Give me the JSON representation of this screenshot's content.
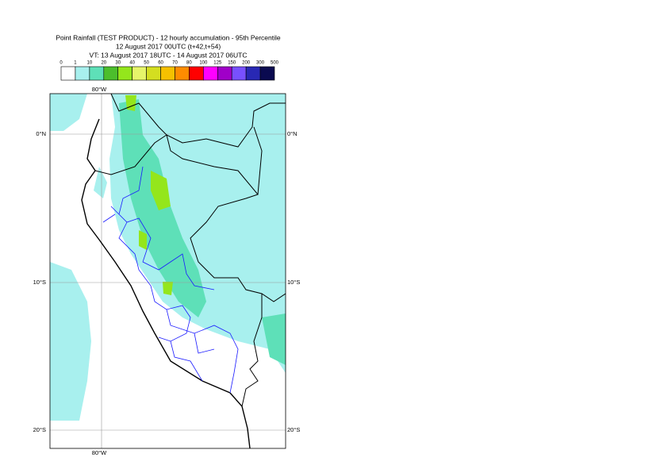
{
  "header": {
    "title": "Point Rainfall (TEST PRODUCT) - 12 hourly accumulation - 95th Percentile",
    "base_time": "12 August 2017 00UTC (t+42,t+54)",
    "valid_time": "VT: 13 August 2017 18UTC - 14 August 2017 06UTC"
  },
  "legend": {
    "labels": [
      "0",
      "1",
      "10",
      "20",
      "30",
      "40",
      "50",
      "60",
      "70",
      "80",
      "100",
      "125",
      "150",
      "200",
      "300",
      "500"
    ],
    "colors": [
      "#ffffff",
      "#a8f0ee",
      "#5ee0b8",
      "#4cbe2c",
      "#94e61c",
      "#e6f56a",
      "#d4de20",
      "#f5c000",
      "#ff8c00",
      "#ff0000",
      "#ff00ff",
      "#a000c8",
      "#7850ff",
      "#2828b4",
      "#0a0a50"
    ]
  },
  "map": {
    "lon_labels": [
      "80°W"
    ],
    "lat_labels": [
      "0°N",
      "10°S",
      "20°S"
    ]
  }
}
